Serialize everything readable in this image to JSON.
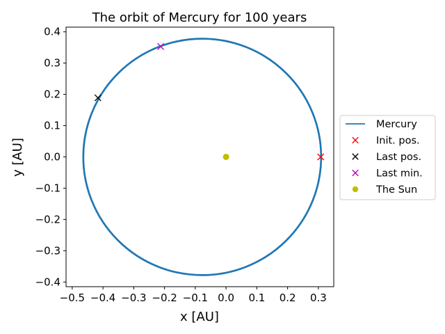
{
  "chart_data": {
    "type": "line",
    "title": "The orbit of Mercury for 100 years",
    "xlabel": "x [AU]",
    "ylabel": "y [AU]",
    "xlim": [
      -0.52,
      0.35
    ],
    "ylim": [
      -0.415,
      0.415
    ],
    "xticks": [
      -0.5,
      -0.4,
      -0.3,
      -0.2,
      -0.1,
      0.0,
      0.1,
      0.2,
      0.3
    ],
    "yticks": [
      -0.4,
      -0.3,
      -0.2,
      -0.1,
      0.0,
      0.1,
      0.2,
      0.3,
      0.4
    ],
    "grid": false,
    "legend_position": "right",
    "orbit": {
      "name": "Mercury",
      "color": "#1f77b4",
      "center": [
        -0.0775,
        0.0
      ],
      "semi_major_axis": 0.3875,
      "semi_minor_axis": 0.379
    },
    "markers": [
      {
        "name": "Init. pos.",
        "x": 0.3075,
        "y": 0.0,
        "marker": "x",
        "color": "#ff0000"
      },
      {
        "name": "Last pos.",
        "x": -0.4165,
        "y": 0.189,
        "marker": "x",
        "color": "#000000"
      },
      {
        "name": "Last min.",
        "x": -0.2125,
        "y": 0.353,
        "marker": "x",
        "color": "#bf00bf"
      },
      {
        "name": "The Sun",
        "x": 0.0,
        "y": 0.0,
        "marker": "o",
        "color": "#bfbf00"
      }
    ],
    "legend": [
      "Mercury",
      "Init. pos.",
      "Last pos.",
      "Last min.",
      "The Sun"
    ]
  }
}
